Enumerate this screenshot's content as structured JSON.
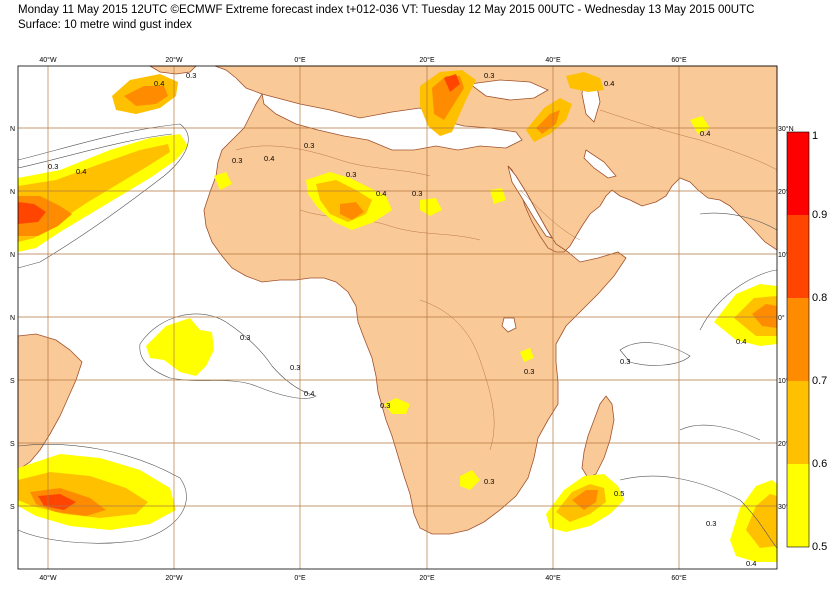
{
  "header": {
    "line1": "Monday 11 May 2015 12UTC ©ECMWF Extreme forecast index t+012-036 VT: Tuesday 12 May 2015 00UTC - Wednesday 13 May 2015 00UTC",
    "line2": "Surface: 10 metre wind gust index"
  },
  "axes": {
    "lon_labels": [
      "40°W",
      "20°W",
      "0°E",
      "20°E",
      "40°E",
      "60°E"
    ],
    "lat_labels_left": [
      "N",
      "N",
      "N",
      "N",
      "S",
      "S",
      "S"
    ],
    "lat_labels_right": [
      "30°N",
      "20°",
      "10°",
      "0°",
      "10°",
      "20°",
      "30°"
    ]
  },
  "legend": {
    "levels": [
      "0.5",
      "0.6",
      "0.7",
      "0.8",
      "0.9",
      "1"
    ],
    "colors": [
      "#ffff00",
      "#ffc000",
      "#ff8c00",
      "#ff4500",
      "#ff0000"
    ]
  },
  "colors": {
    "land": "#f9c997",
    "grid": "#b5783f",
    "coast": "#a0522d",
    "contour": "#555555"
  },
  "contour_labels": [
    "0.3",
    "0.4",
    "0.3",
    "0.4",
    "0.3",
    "0.4",
    "0.3",
    "0.3",
    "0.3",
    "0.4",
    "0.3",
    "0.4",
    "0.3",
    "0.3",
    "0.4",
    "0.3",
    "0.3",
    "0.4",
    "0.4",
    "0.3",
    "0.3",
    "0.5",
    "0.3",
    "0.4"
  ]
}
